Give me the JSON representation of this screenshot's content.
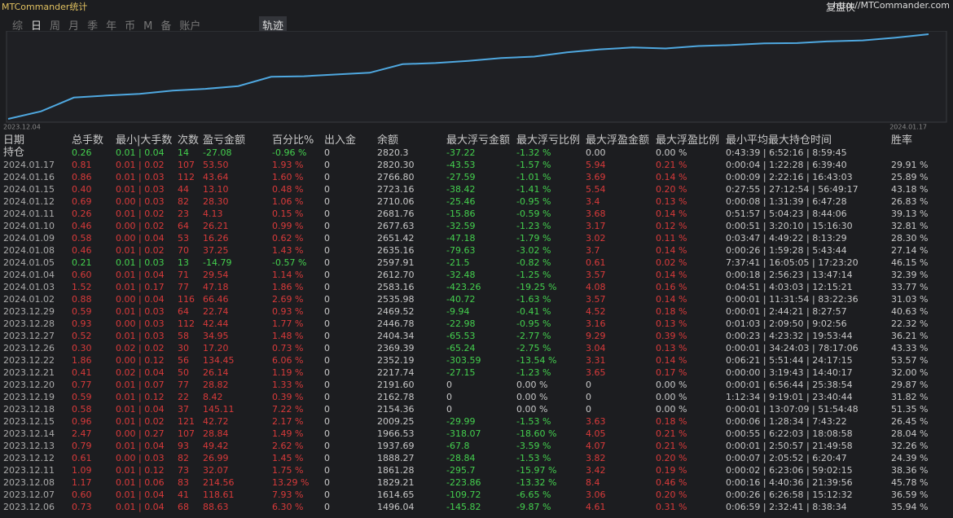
{
  "header": {
    "title": "MTCommander统计",
    "brand": "复盘侠",
    "url": "http://MTCommander.com"
  },
  "tabs": [
    "综",
    "日",
    "周",
    "月",
    "季",
    "年",
    "币",
    "M",
    "备",
    "账户"
  ],
  "active_tab": "轨迹",
  "curve": {
    "start_label": "2023.12.04",
    "end_label": "2024.01.17"
  },
  "table": {
    "columns": [
      "日期",
      "总手数",
      "最小|大手数",
      "次数",
      "盈亏金额",
      "百分比%",
      "出入金",
      "余额",
      "最大浮亏金额",
      "最大浮亏比例",
      "最大浮盈金额",
      "最大浮盈比例",
      "最小平均最大持仓时间",
      "胜率"
    ],
    "rows": [
      [
        "持仓",
        "0.26",
        "0.01 | 0.04",
        "14",
        "-27.08",
        "-0.96 %",
        "0",
        "2820.3",
        "-37.22",
        "-1.32 %",
        "0.00",
        "0.00 %",
        "0:43:39 | 6:52:16 | 8:59:45"
      ],
      [
        "2024.01.17",
        "0.81",
        "0.01 | 0.02",
        "107",
        "53.50",
        "1.93 %",
        "0",
        "2820.30",
        "-43.53",
        "-1.57 %",
        "5.94",
        "0.21 %",
        "0:00:04 | 1:22:28 | 6:39:40",
        "29.91 %"
      ],
      [
        "2024.01.16",
        "0.86",
        "0.01 | 0.03",
        "112",
        "43.64",
        "1.60 %",
        "0",
        "2766.80",
        "-27.59",
        "-1.01 %",
        "3.69",
        "0.14 %",
        "0:00:09 | 2:22:16 | 16:43:03",
        "25.89 %"
      ],
      [
        "2024.01.15",
        "0.40",
        "0.01 | 0.03",
        "44",
        "13.10",
        "0.48 %",
        "0",
        "2723.16",
        "-38.42",
        "-1.41 %",
        "5.54",
        "0.20 %",
        "0:27:55 | 27:12:54 | 56:49:17",
        "43.18 %"
      ],
      [
        "2024.01.12",
        "0.69",
        "0.00 | 0.03",
        "82",
        "28.30",
        "1.06 %",
        "0",
        "2710.06",
        "-25.46",
        "-0.95 %",
        "3.4",
        "0.13 %",
        "0:00:08 | 1:31:39 | 6:47:28",
        "26.83 %"
      ],
      [
        "2024.01.11",
        "0.26",
        "0.01 | 0.02",
        "23",
        "4.13",
        "0.15 %",
        "0",
        "2681.76",
        "-15.86",
        "-0.59 %",
        "3.68",
        "0.14 %",
        "0:51:57 | 5:04:23 | 8:44:06",
        "39.13 %"
      ],
      [
        "2024.01.10",
        "0.46",
        "0.00 | 0.02",
        "64",
        "26.21",
        "0.99 %",
        "0",
        "2677.63",
        "-32.59",
        "-1.23 %",
        "3.17",
        "0.12 %",
        "0:00:51 | 3:20:10 | 15:16:30",
        "32.81 %"
      ],
      [
        "2024.01.09",
        "0.58",
        "0.00 | 0.04",
        "53",
        "16.26",
        "0.62 %",
        "0",
        "2651.42",
        "-47.18",
        "-1.79 %",
        "3.02",
        "0.11 %",
        "0:03:47 | 4:49:22 | 8:13:29",
        "28.30 %"
      ],
      [
        "2024.01.08",
        "0.46",
        "0.01 | 0.02",
        "70",
        "37.25",
        "1.43 %",
        "0",
        "2635.16",
        "-79.63",
        "-3.02 %",
        "3.7",
        "0.14 %",
        "0:00:26 | 1:59:28 | 5:43:44",
        "27.14 %"
      ],
      [
        "2024.01.05",
        "0.21",
        "0.01 | 0.03",
        "13",
        "-14.79",
        "-0.57 %",
        "0",
        "2597.91",
        "-21.5",
        "-0.82 %",
        "0.61",
        "0.02 %",
        "7:37:41 | 16:05:05 | 17:23:20",
        "46.15 %"
      ],
      [
        "2024.01.04",
        "0.60",
        "0.01 | 0.04",
        "71",
        "29.54",
        "1.14 %",
        "0",
        "2612.70",
        "-32.48",
        "-1.25 %",
        "3.57",
        "0.14 %",
        "0:00:18 | 2:56:23 | 13:47:14",
        "32.39 %"
      ],
      [
        "2024.01.03",
        "1.52",
        "0.01 | 0.17",
        "77",
        "47.18",
        "1.86 %",
        "0",
        "2583.16",
        "-423.26",
        "-19.25 %",
        "4.08",
        "0.16 %",
        "0:04:51 | 4:03:03 | 12:15:21",
        "33.77 %"
      ],
      [
        "2024.01.02",
        "0.88",
        "0.00 | 0.04",
        "116",
        "66.46",
        "2.69 %",
        "0",
        "2535.98",
        "-40.72",
        "-1.63 %",
        "3.57",
        "0.14 %",
        "0:00:01 | 11:31:54 | 83:22:36",
        "31.03 %"
      ],
      [
        "2023.12.29",
        "0.59",
        "0.01 | 0.03",
        "64",
        "22.74",
        "0.93 %",
        "0",
        "2469.52",
        "-9.94",
        "-0.41 %",
        "4.52",
        "0.18 %",
        "0:00:01 | 2:44:21 | 8:27:57",
        "40.63 %"
      ],
      [
        "2023.12.28",
        "0.93",
        "0.00 | 0.03",
        "112",
        "42.44",
        "1.77 %",
        "0",
        "2446.78",
        "-22.98",
        "-0.95 %",
        "3.16",
        "0.13 %",
        "0:01:03 | 2:09:50 | 9:02:56",
        "22.32 %"
      ],
      [
        "2023.12.27",
        "0.52",
        "0.01 | 0.03",
        "58",
        "34.95",
        "1.48 %",
        "0",
        "2404.34",
        "-65.53",
        "-2.77 %",
        "9.29",
        "0.39 %",
        "0:00:23 | 4:23:32 | 19:53:44",
        "36.21 %"
      ],
      [
        "2023.12.26",
        "0.30",
        "0.02 | 0.02",
        "30",
        "17.20",
        "0.73 %",
        "0",
        "2369.39",
        "-65.24",
        "-2.75 %",
        "3.04",
        "0.13 %",
        "0:00:01 | 34:24:03 | 78:17:06",
        "43.33 %"
      ],
      [
        "2023.12.22",
        "1.86",
        "0.00 | 0.12",
        "56",
        "134.45",
        "6.06 %",
        "0",
        "2352.19",
        "-303.59",
        "-13.54 %",
        "3.31",
        "0.14 %",
        "0:06:21 | 5:51:44 | 24:17:15",
        "53.57 %"
      ],
      [
        "2023.12.21",
        "0.41",
        "0.02 | 0.04",
        "50",
        "26.14",
        "1.19 %",
        "0",
        "2217.74",
        "-27.15",
        "-1.23 %",
        "3.65",
        "0.17 %",
        "0:00:00 | 3:19:43 | 14:40:17",
        "32.00 %"
      ],
      [
        "2023.12.20",
        "0.77",
        "0.01 | 0.07",
        "77",
        "28.82",
        "1.33 %",
        "0",
        "2191.60",
        "0",
        "0.00 %",
        "0",
        "0.00 %",
        "0:00:01 | 6:56:44 | 25:38:54",
        "29.87 %"
      ],
      [
        "2023.12.19",
        "0.59",
        "0.01 | 0.12",
        "22",
        "8.42",
        "0.39 %",
        "0",
        "2162.78",
        "0",
        "0.00 %",
        "0",
        "0.00 %",
        "1:12:34 | 9:19:01 | 23:40:44",
        "31.82 %"
      ],
      [
        "2023.12.18",
        "0.58",
        "0.01 | 0.04",
        "37",
        "145.11",
        "7.22 %",
        "0",
        "2154.36",
        "0",
        "0.00 %",
        "0",
        "0.00 %",
        "0:00:01 | 13:07:09 | 51:54:48",
        "51.35 %"
      ],
      [
        "2023.12.15",
        "0.96",
        "0.01 | 0.02",
        "121",
        "42.72",
        "2.17 %",
        "0",
        "2009.25",
        "-29.99",
        "-1.53 %",
        "3.63",
        "0.18 %",
        "0:00:06 | 1:28:34 | 7:43:22",
        "26.45 %"
      ],
      [
        "2023.12.14",
        "2.47",
        "0.00 | 0.27",
        "107",
        "28.84",
        "1.49 %",
        "0",
        "1966.53",
        "-318.07",
        "-18.60 %",
        "4.05",
        "0.21 %",
        "0:00:55 | 6:22:03 | 18:08:58",
        "28.04 %"
      ],
      [
        "2023.12.13",
        "0.79",
        "0.01 | 0.04",
        "93",
        "49.42",
        "2.62 %",
        "0",
        "1937.69",
        "-67.8",
        "-3.59 %",
        "4.07",
        "0.21 %",
        "0:00:01 | 2:50:57 | 21:49:58",
        "32.26 %"
      ],
      [
        "2023.12.12",
        "0.61",
        "0.00 | 0.03",
        "82",
        "26.99",
        "1.45 %",
        "0",
        "1888.27",
        "-28.84",
        "-1.53 %",
        "3.82",
        "0.20 %",
        "0:00:07 | 2:05:52 | 6:20:47",
        "24.39 %"
      ],
      [
        "2023.12.11",
        "1.09",
        "0.01 | 0.12",
        "73",
        "32.07",
        "1.75 %",
        "0",
        "1861.28",
        "-295.7",
        "-15.97 %",
        "3.42",
        "0.19 %",
        "0:00:02 | 6:23:06 | 59:02:15",
        "38.36 %"
      ],
      [
        "2023.12.08",
        "1.17",
        "0.01 | 0.06",
        "83",
        "214.56",
        "13.29 %",
        "0",
        "1829.21",
        "-223.86",
        "-13.32 %",
        "8.4",
        "0.46 %",
        "0:00:16 | 4:40:36 | 21:39:56",
        "45.78 %"
      ],
      [
        "2023.12.07",
        "0.60",
        "0.01 | 0.04",
        "41",
        "118.61",
        "7.93 %",
        "0",
        "1614.65",
        "-109.72",
        "-6.65 %",
        "3.06",
        "0.20 %",
        "0:00:26 | 6:26:58 | 15:12:32",
        "36.59 %"
      ],
      [
        "2023.12.06",
        "0.73",
        "0.01 | 0.04",
        "68",
        "88.63",
        "6.30 %",
        "0",
        "1496.04",
        "-145.82",
        "-9.87 %",
        "4.61",
        "0.31 %",
        "0:06:59 | 2:32:41 | 8:38:34",
        "35.94 %"
      ]
    ]
  }
}
